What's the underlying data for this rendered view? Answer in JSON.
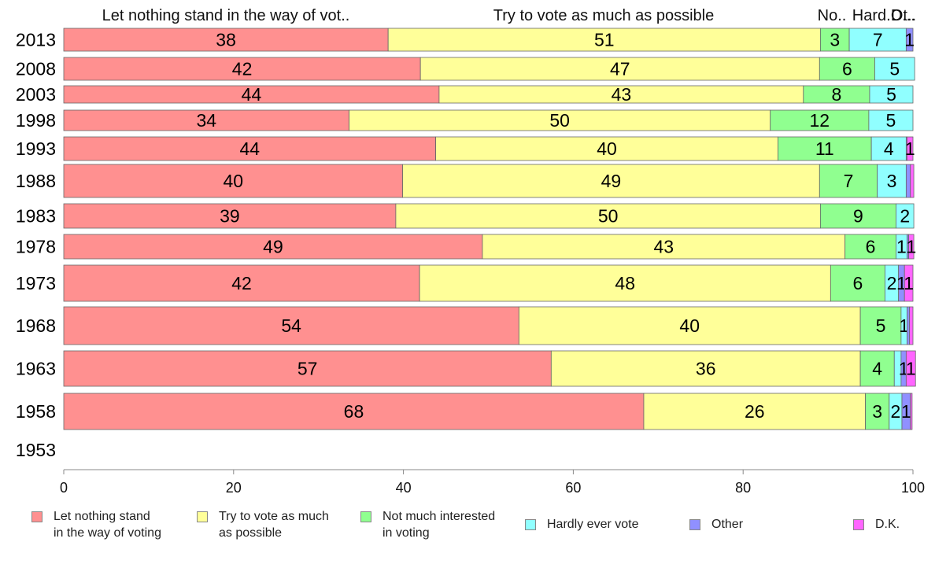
{
  "chart_data": {
    "type": "bar",
    "orientation": "horizontal",
    "stacked": true,
    "categories": [
      "2013",
      "2008",
      "2003",
      "1998",
      "1993",
      "1988",
      "1983",
      "1978",
      "1973",
      "1968",
      "1963",
      "1958",
      "1953"
    ],
    "series": [
      {
        "name": "Let nothing stand in the way of voting",
        "color": "#ff9090",
        "values": [
          38.2,
          42.0,
          44.2,
          33.6,
          43.8,
          39.9,
          39.1,
          49.3,
          41.9,
          53.6,
          57.4,
          68.3,
          null
        ]
      },
      {
        "name": "Try to vote as much as possible",
        "color": "#ffff99",
        "values": [
          50.9,
          47.0,
          42.9,
          49.6,
          40.3,
          49.1,
          50.0,
          42.7,
          48.4,
          40.2,
          36.4,
          26.1,
          null
        ]
      },
      {
        "name": "Not much interested in voting",
        "color": "#90ff90",
        "values": [
          3.4,
          6.5,
          7.8,
          11.6,
          11.0,
          6.8,
          8.9,
          6.0,
          6.4,
          4.8,
          4.0,
          2.8,
          null
        ]
      },
      {
        "name": "Hardly ever vote",
        "color": "#90ffff",
        "values": [
          6.7,
          4.7,
          5.1,
          5.2,
          4.1,
          3.4,
          2.1,
          1.3,
          1.6,
          0.7,
          0.8,
          1.5,
          null
        ]
      },
      {
        "name": "Other",
        "color": "#9090ff",
        "values": [
          0.8,
          0.0,
          0.0,
          0.0,
          0.1,
          0.5,
          0.0,
          0.2,
          0.7,
          0.3,
          0.6,
          1.0,
          null
        ]
      },
      {
        "name": "D.K.",
        "color": "#ff66ff",
        "values": [
          0.0,
          0.0,
          0.0,
          0.0,
          0.7,
          0.4,
          0.0,
          0.6,
          1.0,
          0.4,
          1.1,
          0.2,
          null
        ]
      }
    ],
    "value_labels": [
      [
        "38",
        "51",
        "3",
        "7",
        "1",
        ""
      ],
      [
        "42",
        "47",
        "6",
        "5",
        "",
        ""
      ],
      [
        "44",
        "43",
        "8",
        "5",
        "",
        ""
      ],
      [
        "34",
        "50",
        "12",
        "5",
        "",
        ""
      ],
      [
        "44",
        "40",
        "11",
        "4",
        "",
        "1"
      ],
      [
        "40",
        "49",
        "7",
        "3",
        "",
        ""
      ],
      [
        "39",
        "50",
        "9",
        "2",
        "",
        ""
      ],
      [
        "49",
        "43",
        "6",
        "1",
        "",
        "1"
      ],
      [
        "42",
        "48",
        "6",
        "2",
        "1",
        "1"
      ],
      [
        "54",
        "40",
        "5",
        "1",
        "",
        ""
      ],
      [
        "57",
        "36",
        "4",
        "",
        "1",
        "1"
      ],
      [
        "68",
        "26",
        "3",
        "2",
        "1",
        ""
      ],
      [
        "",
        "",
        "",
        "",
        "",
        ""
      ]
    ],
    "top_labels": [
      "Let nothing stand in the way of vot..",
      "Try to vote as much as possible",
      "No..",
      "Hard..",
      "Ot..",
      "D..."
    ],
    "xlim": [
      0,
      100
    ],
    "xticks": [
      0,
      20,
      40,
      60,
      80,
      100
    ],
    "grid": false,
    "legend_position": "bottom"
  },
  "legend": [
    {
      "label": "Let nothing stand\nin the way of voting",
      "color": "#ff9090"
    },
    {
      "label": "Try to vote as much\nas possible",
      "color": "#ffff99"
    },
    {
      "label": "Not much interested\nin voting",
      "color": "#90ff90"
    },
    {
      "label": "Hardly ever vote",
      "color": "#90ffff"
    },
    {
      "label": "Other",
      "color": "#9090ff"
    },
    {
      "label": "D.K.",
      "color": "#ff66ff"
    }
  ]
}
